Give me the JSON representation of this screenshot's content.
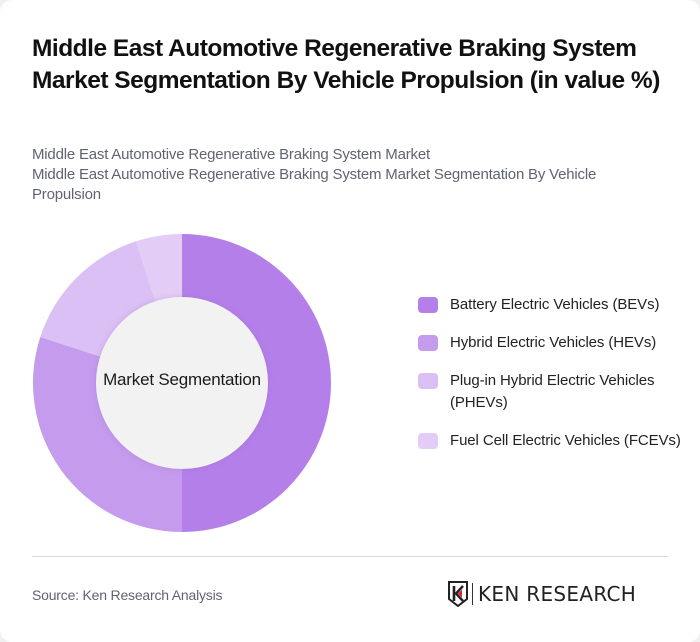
{
  "header": {
    "title": "Middle East Automotive Regenerative Braking System Market Segmentation By Vehicle Propulsion (in value %)",
    "subtitle_line1": "Middle East Automotive Regenerative Braking System Market",
    "subtitle_line2": "Middle East Automotive Regenerative Braking System Market Segmentation By Vehicle Propulsion"
  },
  "chart_data": {
    "type": "pie",
    "variant": "donut",
    "title": "Middle East Automotive Regenerative Braking System Market Segmentation By Vehicle Propulsion (in value %)",
    "center_label": "Market Segmentation",
    "categories": [
      "Battery Electric Vehicles (BEVs)",
      "Hybrid Electric Vehicles (HEVs)",
      "Plug-in Hybrid Electric Vehicles (PHEVs)",
      "Fuel Cell Electric Vehicles (FCEVs)"
    ],
    "values": [
      50,
      30,
      15,
      5
    ],
    "colors": [
      "#b57fe9",
      "#c49bed",
      "#dbc0f5",
      "#e3cdf7"
    ],
    "legend_position": "right",
    "data_labels": false
  },
  "legend": {
    "items": [
      {
        "label": "Battery Electric Vehicles (BEVs)",
        "color": "#b57fe9"
      },
      {
        "label": "Hybrid Electric Vehicles (HEVs)",
        "color": "#c49bed"
      },
      {
        "label": "Plug-in Hybrid Electric Vehicles (PHEVs)",
        "color": "#dbc0f5"
      },
      {
        "label": "Fuel Cell Electric Vehicles (FCEVs)",
        "color": "#e3cdf7"
      }
    ]
  },
  "footer": {
    "source": "Source: Ken Research Analysis",
    "logo_text": "KEN RESEARCH"
  },
  "colors": {
    "center_fill": "#f2f2f2",
    "logo_accent": "#d62828"
  }
}
